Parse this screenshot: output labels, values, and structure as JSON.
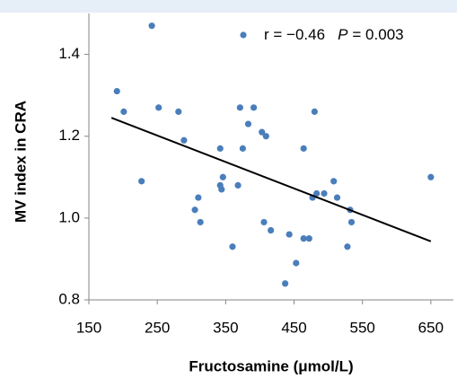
{
  "chart_data": {
    "type": "scatter",
    "x_label": "Fructosamine (μmol/L)",
    "y_label": "MV index in CRA",
    "xlim": [
      150,
      683
    ],
    "ylim": [
      0.8,
      1.5
    ],
    "xticks": [
      150,
      250,
      350,
      450,
      550,
      650
    ],
    "yticks": [
      0.8,
      {
        "value": 1,
        "label": "1.0"
      },
      1.2,
      1.4
    ],
    "series": [
      {
        "name": "r = −0.46",
        "color": "#4a7ebb",
        "x": [
          191,
          201,
          227,
          242,
          252,
          281,
          289,
          305,
          310,
          313,
          342,
          342,
          344,
          346,
          360,
          368,
          371,
          375,
          383,
          391,
          403,
          409,
          406,
          416,
          437,
          443,
          453,
          464,
          464,
          472,
          477,
          480,
          483,
          494,
          508,
          513,
          528,
          532,
          534,
          650
        ],
        "values": [
          1.31,
          1.26,
          1.09,
          1.47,
          1.27,
          1.26,
          1.19,
          1.02,
          1.05,
          0.99,
          1.17,
          1.08,
          1.07,
          1.1,
          0.93,
          1.08,
          1.27,
          1.17,
          1.23,
          1.27,
          1.21,
          1.2,
          0.99,
          0.97,
          0.84,
          0.96,
          0.89,
          1.17,
          0.95,
          0.95,
          1.05,
          1.26,
          1.06,
          1.06,
          1.09,
          1.05,
          0.93,
          1.02,
          0.99,
          1.1
        ]
      }
    ],
    "trendline": {
      "color": "#000000",
      "x": [
        183,
        650
      ],
      "values": [
        1.245,
        0.943
      ]
    },
    "annotation": {
      "p_label": "P",
      "p_text": "= 0.003"
    }
  }
}
